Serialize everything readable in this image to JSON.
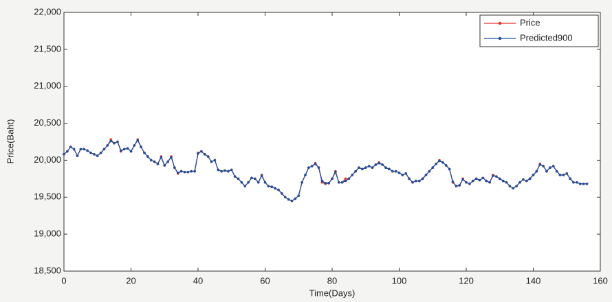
{
  "chart_data": {
    "type": "line",
    "x_label": "Time(Days)",
    "y_label": "Price(Baht)",
    "xlim": [
      0,
      160
    ],
    "xticks": [
      0,
      20,
      40,
      60,
      80,
      100,
      120,
      140,
      160
    ],
    "ylim": [
      18500,
      22000
    ],
    "yticks": [
      {
        "value": 18500,
        "label": "18,500"
      },
      {
        "value": 19000,
        "label": "19,000"
      },
      {
        "value": 19500,
        "label": "19,500"
      },
      {
        "value": 20000,
        "label": "20,000"
      },
      {
        "value": 20500,
        "label": "20,500"
      },
      {
        "value": 21000,
        "label": "21,000"
      },
      {
        "value": 21500,
        "label": "21,500"
      },
      {
        "value": 22000,
        "label": "22,000"
      }
    ],
    "legend": "upper right",
    "x": [
      0,
      1,
      2,
      3,
      4,
      5,
      6,
      7,
      8,
      9,
      10,
      11,
      12,
      13,
      14,
      15,
      16,
      17,
      18,
      19,
      20,
      21,
      22,
      23,
      24,
      25,
      26,
      27,
      28,
      29,
      30,
      31,
      32,
      33,
      34,
      35,
      36,
      37,
      38,
      39,
      40,
      41,
      42,
      43,
      44,
      45,
      46,
      47,
      48,
      49,
      50,
      51,
      52,
      53,
      54,
      55,
      56,
      57,
      58,
      59,
      60,
      61,
      62,
      63,
      64,
      65,
      66,
      67,
      68,
      69,
      70,
      71,
      72,
      73,
      74,
      75,
      76,
      77,
      78,
      79,
      80,
      81,
      82,
      83,
      84,
      85,
      86,
      87,
      88,
      89,
      90,
      91,
      92,
      93,
      94,
      95,
      96,
      97,
      98,
      99,
      100,
      101,
      102,
      103,
      104,
      105,
      106,
      107,
      108,
      109,
      110,
      111,
      112,
      113,
      114,
      115,
      116,
      117,
      118,
      119,
      120,
      121,
      122,
      123,
      124,
      125,
      126,
      127,
      128,
      129,
      130,
      131,
      132,
      133,
      134,
      135,
      136,
      137,
      138,
      139,
      140,
      141,
      142,
      143,
      144,
      145,
      146,
      147,
      148,
      149,
      150,
      151,
      152,
      153,
      154,
      155,
      156
    ],
    "series": [
      {
        "name": "Price",
        "color": "#e8302a",
        "values": [
          20080,
          20120,
          20180,
          20150,
          20060,
          20150,
          20150,
          20130,
          20100,
          20080,
          20060,
          20100,
          20150,
          20200,
          20280,
          20230,
          20250,
          20120,
          20150,
          20160,
          20120,
          20200,
          20280,
          20180,
          20100,
          20050,
          20000,
          19980,
          19950,
          20050,
          19930,
          19980,
          20050,
          19900,
          19820,
          19850,
          19840,
          19840,
          19850,
          19850,
          20100,
          20120,
          20080,
          20050,
          19980,
          20000,
          19870,
          19850,
          19860,
          19850,
          19870,
          19780,
          19750,
          19700,
          19650,
          19700,
          19760,
          19750,
          19700,
          19800,
          19700,
          19650,
          19640,
          19620,
          19600,
          19550,
          19500,
          19470,
          19450,
          19480,
          19520,
          19700,
          19800,
          19900,
          19920,
          19960,
          19900,
          19700,
          19680,
          19690,
          19750,
          19850,
          19700,
          19700,
          19750,
          19750,
          19800,
          19850,
          19900,
          19880,
          19900,
          19920,
          19900,
          19940,
          19970,
          19940,
          19900,
          19880,
          19850,
          19850,
          19830,
          19800,
          19820,
          19750,
          19700,
          19720,
          19720,
          19750,
          19800,
          19850,
          19900,
          19950,
          20000,
          19970,
          19930,
          19880,
          19700,
          19650,
          19660,
          19750,
          19700,
          19680,
          19720,
          19750,
          19730,
          19760,
          19720,
          19700,
          19800,
          19780,
          19750,
          19720,
          19700,
          19650,
          19620,
          19650,
          19700,
          19740,
          19720,
          19750,
          19800,
          19850,
          19950,
          19920,
          19850,
          19900,
          19920,
          19850,
          19800,
          19800,
          19820,
          19750,
          19700,
          19700,
          19680,
          19680,
          19680
        ]
      },
      {
        "name": "Predicted900",
        "color": "#1f4e9c",
        "values": [
          20080,
          20120,
          20180,
          20150,
          20060,
          20150,
          20150,
          20130,
          20100,
          20080,
          20060,
          20100,
          20150,
          20200,
          20260,
          20230,
          20250,
          20130,
          20150,
          20160,
          20120,
          20200,
          20270,
          20180,
          20100,
          20050,
          20000,
          19980,
          19950,
          20040,
          19930,
          19980,
          20040,
          19900,
          19830,
          19850,
          19840,
          19840,
          19850,
          19850,
          20090,
          20120,
          20080,
          20050,
          19980,
          20000,
          19870,
          19850,
          19860,
          19850,
          19870,
          19780,
          19750,
          19700,
          19650,
          19700,
          19760,
          19750,
          19700,
          19790,
          19700,
          19650,
          19640,
          19620,
          19600,
          19550,
          19500,
          19470,
          19450,
          19480,
          19520,
          19700,
          19800,
          19900,
          19920,
          19950,
          19900,
          19720,
          19690,
          19690,
          19750,
          19840,
          19700,
          19700,
          19720,
          19750,
          19800,
          19850,
          19900,
          19880,
          19900,
          19920,
          19900,
          19940,
          19960,
          19940,
          19900,
          19880,
          19850,
          19850,
          19830,
          19800,
          19820,
          19750,
          19700,
          19720,
          19720,
          19750,
          19800,
          19850,
          19900,
          19950,
          19990,
          19970,
          19930,
          19880,
          19710,
          19650,
          19660,
          19740,
          19700,
          19680,
          19720,
          19750,
          19730,
          19760,
          19720,
          19700,
          19790,
          19780,
          19750,
          19720,
          19700,
          19650,
          19620,
          19650,
          19700,
          19740,
          19720,
          19750,
          19800,
          19850,
          19940,
          19920,
          19850,
          19900,
          19920,
          19850,
          19800,
          19800,
          19820,
          19750,
          19700,
          19700,
          19680,
          19680,
          19680
        ]
      }
    ]
  }
}
